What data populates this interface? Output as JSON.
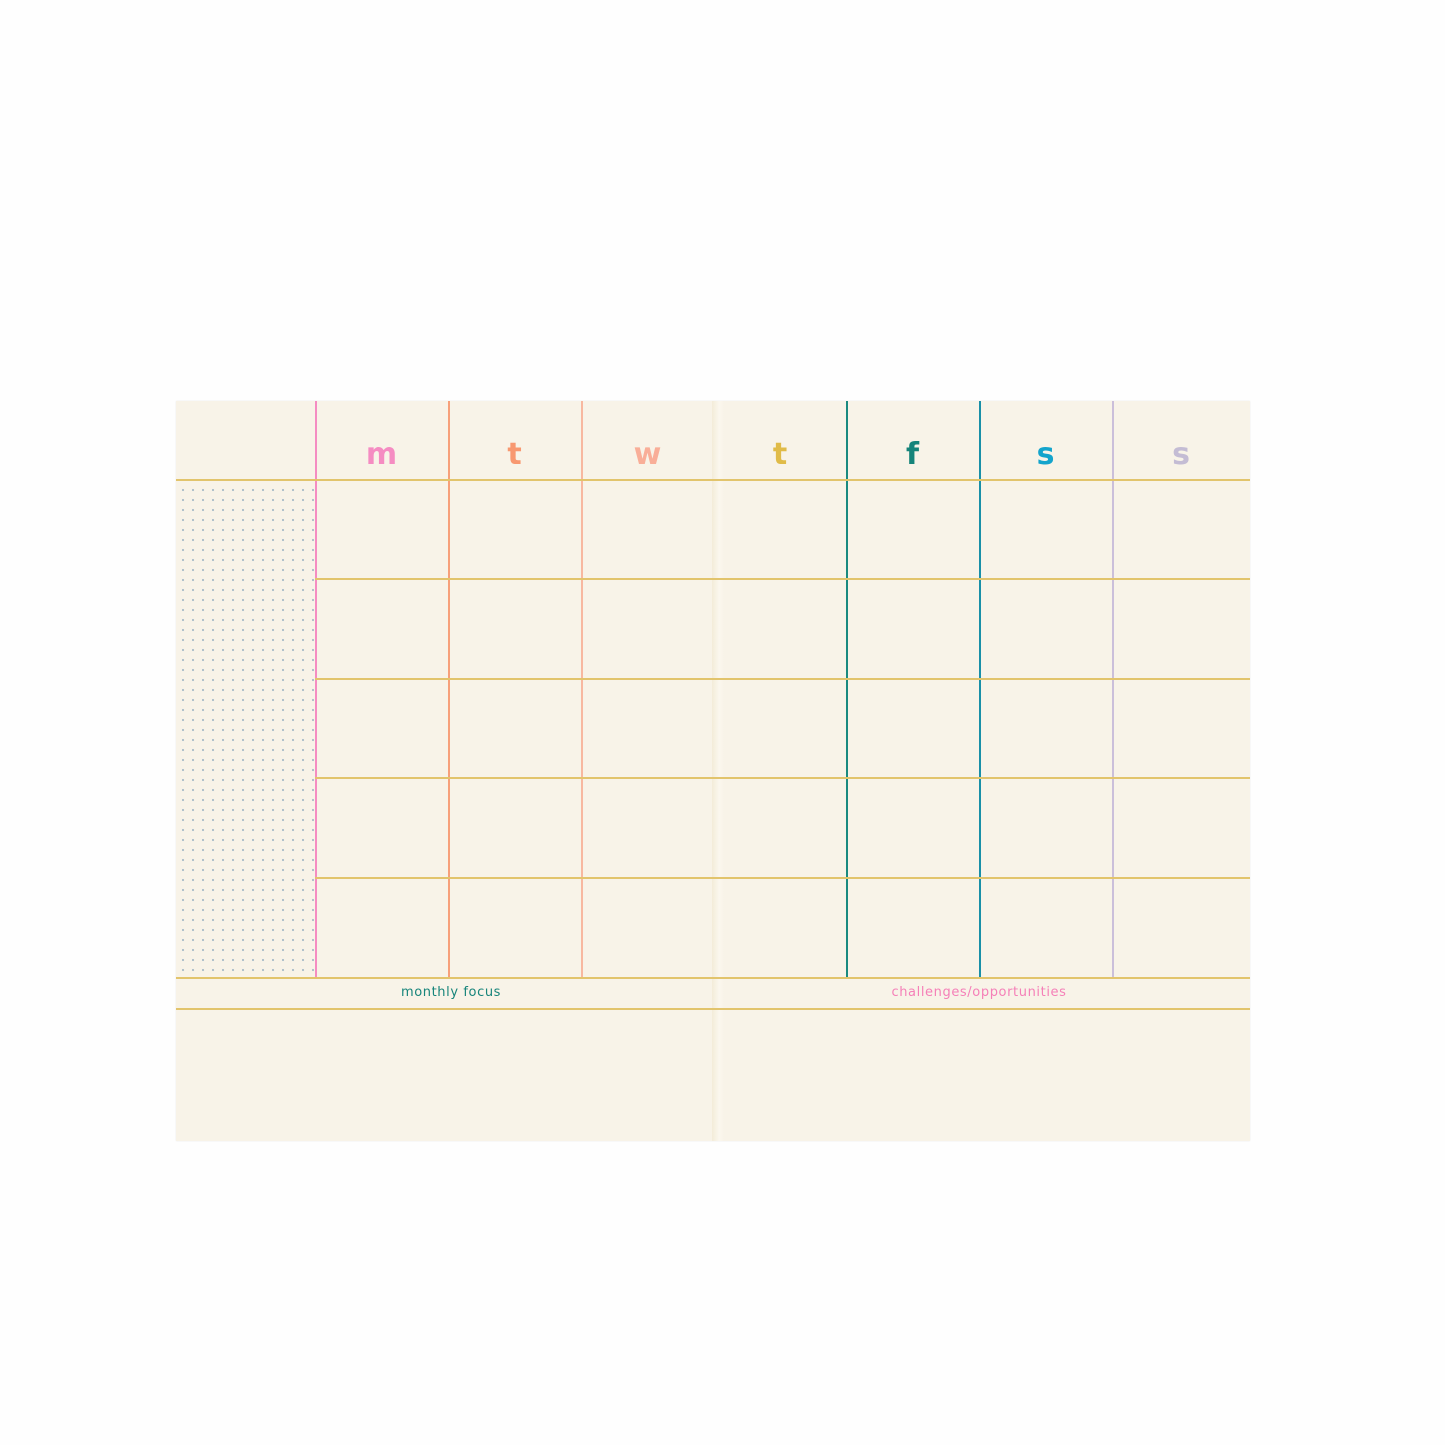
{
  "planner": {
    "days": [
      {
        "label": "m",
        "color": "#f58cc2"
      },
      {
        "label": "t",
        "color": "#f89870"
      },
      {
        "label": "w",
        "color": "#f9ae98"
      },
      {
        "label": "t",
        "color": "#e0bb48"
      },
      {
        "label": "f",
        "color": "#16847a"
      },
      {
        "label": "s",
        "color": "#14a4cc"
      },
      {
        "label": "s",
        "color": "#c4bcd4"
      }
    ],
    "column_line_colors": [
      "#f58cc2",
      "#f7a07a",
      "#f8b8a0",
      "#f0e6d0",
      "#1a8a80",
      "#1a90a8",
      "#cbbfda"
    ],
    "grid_line_color": "#e2c46c",
    "weeks": 5,
    "footer": {
      "monthly_focus": "monthly focus",
      "monthly_focus_color": "#16847a",
      "challenges": "challenges/opportunities",
      "challenges_color": "#f580b8"
    }
  }
}
